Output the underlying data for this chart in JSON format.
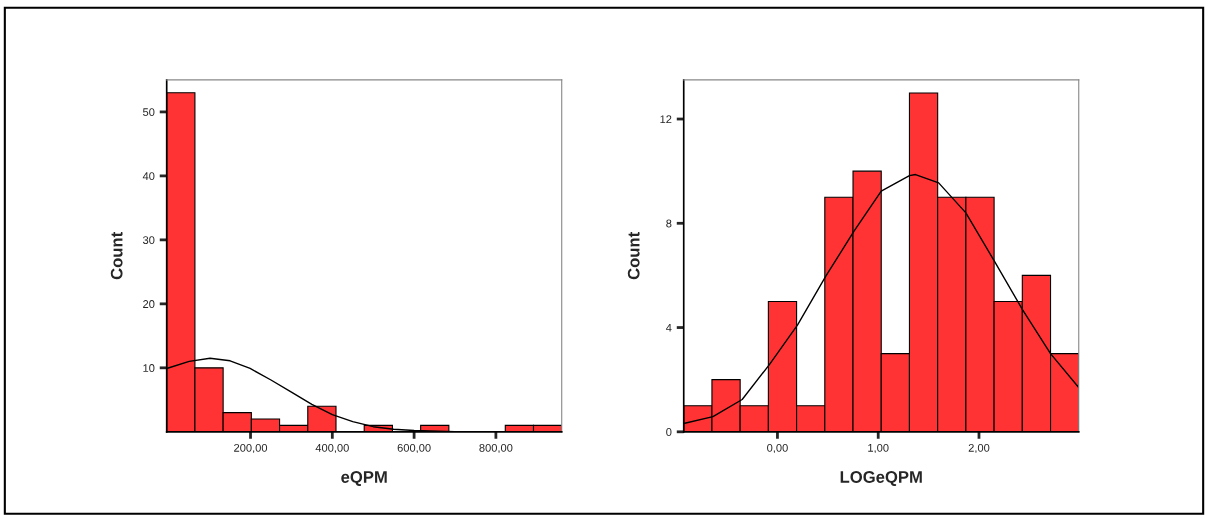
{
  "chart_data": [
    {
      "type": "histogram",
      "xlabel": "eQPM",
      "ylabel": "Count",
      "color": "#ff3333",
      "bins": [
        -5,
        64,
        133,
        202,
        271,
        340,
        409,
        478,
        547,
        616,
        685,
        754,
        823,
        892,
        961
      ],
      "values": [
        53,
        10,
        3,
        2,
        1,
        4,
        0,
        1,
        0,
        1,
        0,
        0,
        1,
        1
      ],
      "series": [
        {
          "type": "line",
          "color": "#000000",
          "x": [
            -5,
            50,
            101,
            150,
            199,
            250,
            300,
            350,
            400,
            450,
            500,
            550,
            600,
            700,
            800,
            958
          ],
          "values": [
            9.9,
            11.0,
            11.5,
            11.1,
            9.9,
            8.1,
            6.2,
            4.3,
            2.7,
            1.6,
            0.8,
            0.4,
            0.2,
            0.0,
            0.0,
            0.0
          ]
        }
      ],
      "xlim": [
        -5,
        961
      ],
      "ylim": [
        0,
        55
      ],
      "xticks": [
        {
          "value": 200,
          "label": "200,00"
        },
        {
          "value": 400,
          "label": "400,00"
        },
        {
          "value": 600,
          "label": "600,00"
        },
        {
          "value": 800,
          "label": "800,00"
        }
      ],
      "yticks": [
        10,
        20,
        30,
        40,
        50
      ]
    },
    {
      "type": "histogram",
      "xlabel": "LOGeQPM",
      "ylabel": "Count",
      "color": "#ff3333",
      "bins": [
        -0.93,
        -0.65,
        -0.37,
        -0.09,
        0.19,
        0.47,
        0.75,
        1.03,
        1.31,
        1.59,
        1.87,
        2.15,
        2.43,
        2.71,
        2.99
      ],
      "values": [
        1,
        2,
        1,
        5,
        1,
        9,
        10,
        3,
        13,
        9,
        9,
        5,
        6,
        3
      ],
      "series": [
        {
          "type": "line",
          "color": "#000000",
          "x": [
            -0.93,
            -0.64,
            -0.35,
            -0.08,
            0.2,
            0.48,
            0.76,
            1.03,
            1.31,
            1.37,
            1.6,
            1.87,
            2.16,
            2.43,
            2.71,
            2.99
          ],
          "values": [
            0.32,
            0.58,
            1.24,
            2.58,
            4.1,
            5.97,
            7.7,
            9.23,
            9.83,
            9.87,
            9.55,
            8.4,
            6.5,
            4.7,
            3.0,
            1.7
          ]
        }
      ],
      "xlim": [
        -0.93,
        2.99
      ],
      "ylim": [
        0,
        13.5
      ],
      "xticks": [
        {
          "value": 0,
          "label": "0,00"
        },
        {
          "value": 1,
          "label": "1,00"
        },
        {
          "value": 2,
          "label": "2,00"
        }
      ],
      "yticks": [
        0,
        4,
        8,
        12
      ]
    }
  ]
}
